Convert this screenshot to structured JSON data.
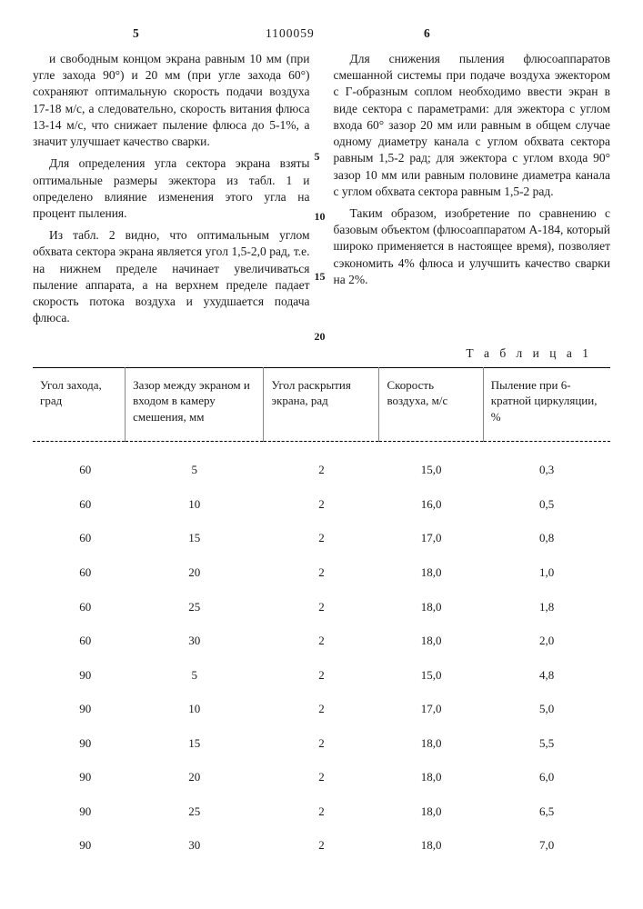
{
  "header": {
    "left_colnum": "5",
    "docnum": "1100059",
    "right_colnum": "6"
  },
  "left_column": {
    "p1": "и свободным концом экрана равным 10 мм (при угле захода 90°) и 20 мм (при угле захода 60°) сохраняют оптимальную скорость подачи воздуха 17-18 м/с, а следовательно, скорость витания флюса 13-14 м/с, что снижает пыление флюса до 5-1%, а значит улучшает качество сварки.",
    "p2": "Для определения угла сектора экрана взяты оптимальные размеры эжектора из табл. 1 и определено влияние изменения этого угла на процент пыления.",
    "p3": "Из табл. 2 видно, что оптимальным углом обхвата сектора экрана является угол 1,5-2,0 рад, т.е. на нижнем пределе начинает увеличиваться пыление аппарата, а на верхнем пределе падает скорость потока воздуха и ухудшается подача флюса."
  },
  "right_column": {
    "p1": "Для снижения пыления флюсоаппаратов смешанной системы при подаче воздуха эжектором с Г-образным соплом необходимо ввести экран в виде сектора с параметрами: для эжектора с углом входа 60° зазор 20 мм или равным в общем случае одному диаметру канала с углом обхвата сектора равным 1,5-2 рад; для эжектора с углом входа 90° зазор 10 мм или равным половине диаметра канала с углом обхвата сектора равным 1,5-2 рад.",
    "p2": "Таким образом, изобретение по сравнению с базовым объектом (флюсоаппаратом А-184, который широко применяется в настоящее время), позволяет сэкономить 4% флюса и улучшить качество сварки на 2%."
  },
  "side_numbers": {
    "n5": "5",
    "n10": "10",
    "n15": "15",
    "n20": "20"
  },
  "table": {
    "caption": "Т а б л и ц а  1",
    "columns": [
      "Угол захода, град",
      "Зазор между экраном и входом в камеру смешения, мм",
      "Угол раскрытия экрана, рад",
      "Скорость воздуха, м/с",
      "Пыление при 6-кратной циркуляции, %"
    ],
    "col_widths": [
      "16%",
      "24%",
      "20%",
      "18%",
      "22%"
    ],
    "rows": [
      [
        "60",
        "5",
        "2",
        "15,0",
        "0,3"
      ],
      [
        "60",
        "10",
        "2",
        "16,0",
        "0,5"
      ],
      [
        "60",
        "15",
        "2",
        "17,0",
        "0,8"
      ],
      [
        "60",
        "20",
        "2",
        "18,0",
        "1,0"
      ],
      [
        "60",
        "25",
        "2",
        "18,0",
        "1,8"
      ],
      [
        "60",
        "30",
        "2",
        "18,0",
        "2,0"
      ],
      [
        "90",
        "5",
        "2",
        "15,0",
        "4,8"
      ],
      [
        "90",
        "10",
        "2",
        "17,0",
        "5,0"
      ],
      [
        "90",
        "15",
        "2",
        "18,0",
        "5,5"
      ],
      [
        "90",
        "20",
        "2",
        "18,0",
        "6,0"
      ],
      [
        "90",
        "25",
        "2",
        "18,0",
        "6,5"
      ],
      [
        "90",
        "30",
        "2",
        "18,0",
        "7,0"
      ]
    ]
  }
}
